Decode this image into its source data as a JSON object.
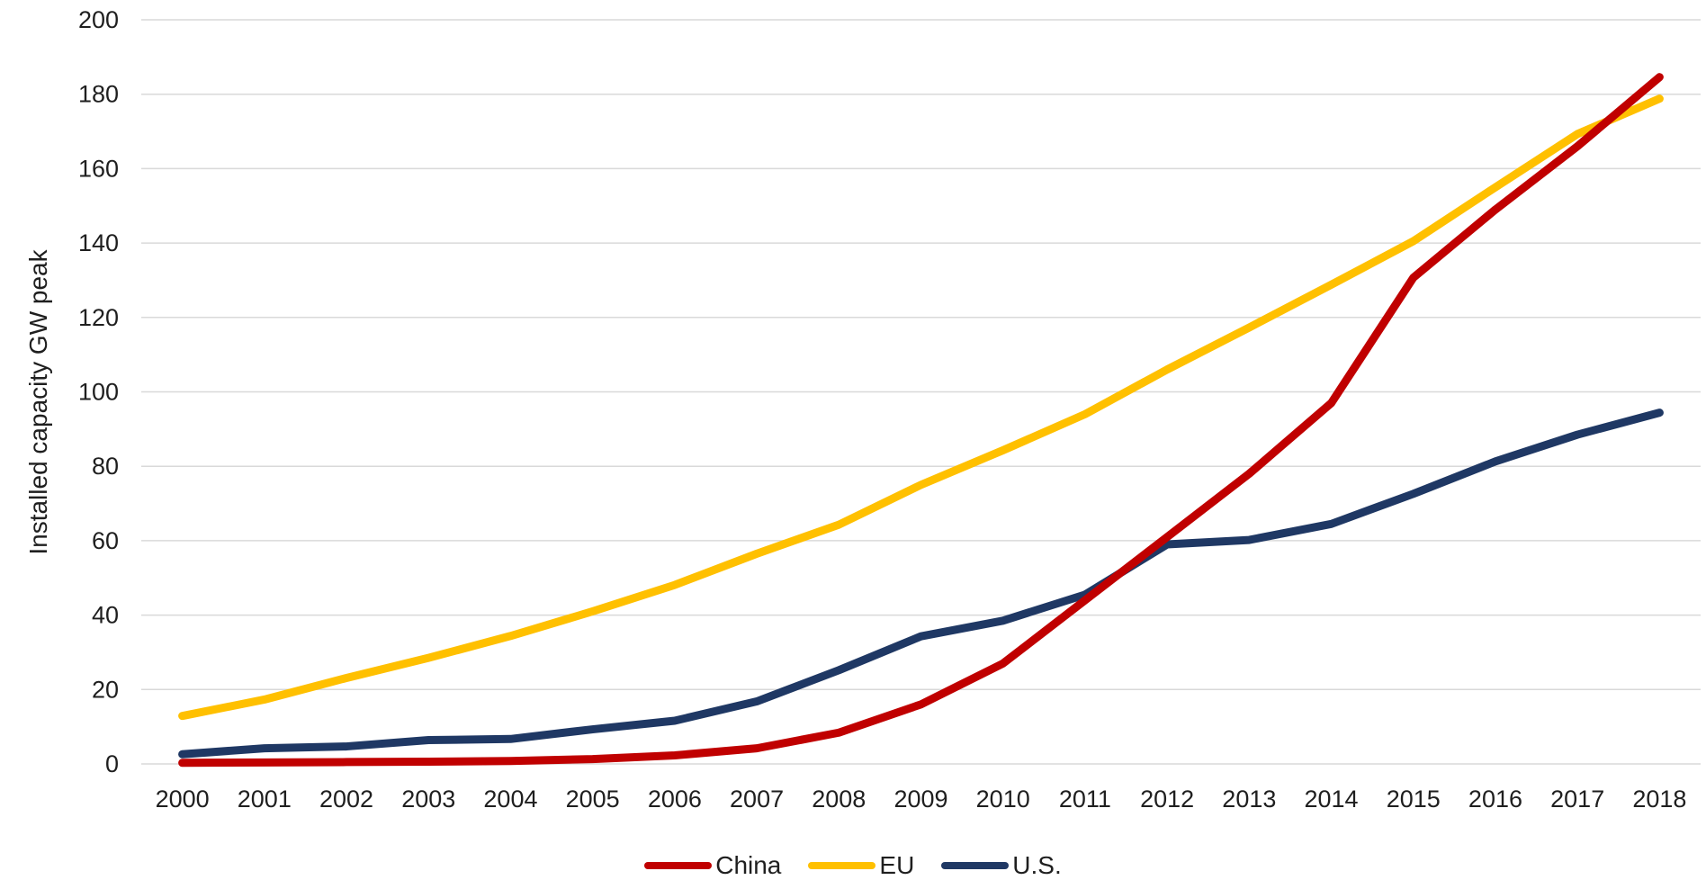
{
  "chart": {
    "y_axis_title": "Installed capacity GW peak",
    "background_color": "#ffffff",
    "gridline_color": "#d9d9d9",
    "text_color": "#1f1f1f"
  },
  "chart_data": {
    "type": "line",
    "title": "",
    "xlabel": "",
    "ylabel": "Installed capacity GW peak",
    "x": [
      2000,
      2001,
      2002,
      2003,
      2004,
      2005,
      2006,
      2007,
      2008,
      2009,
      2010,
      2011,
      2012,
      2013,
      2014,
      2015,
      2016,
      2017,
      2018
    ],
    "series": [
      {
        "name": "China",
        "color": "#c00000",
        "values": [
          0.3,
          0.4,
          0.5,
          0.6,
          0.8,
          1.3,
          2.3,
          4.2,
          8.4,
          16,
          27,
          44,
          61,
          78,
          97,
          130.7,
          149,
          166,
          184.6
        ]
      },
      {
        "name": "EU",
        "color": "#ffc000",
        "values": [
          12.9,
          17.3,
          23.1,
          28.5,
          34.4,
          41,
          48.1,
          56.5,
          64.3,
          75,
          84.3,
          94,
          106,
          117.3,
          128.8,
          140.5,
          155,
          169.3,
          178.8
        ]
      },
      {
        "name": "U.S.",
        "color": "#1f3864",
        "values": [
          2.6,
          4.2,
          4.7,
          6.4,
          6.7,
          9.3,
          11.6,
          16.8,
          25.2,
          34.3,
          38.5,
          45.5,
          59,
          60.2,
          64.5,
          72.6,
          81.3,
          88.5,
          94.4
        ]
      }
    ],
    "ylim": [
      0,
      200
    ],
    "ytick_step": 20,
    "yticks": [
      0,
      20,
      40,
      60,
      80,
      100,
      120,
      140,
      160,
      180,
      200
    ],
    "grid": true,
    "legend_position": "bottom"
  }
}
